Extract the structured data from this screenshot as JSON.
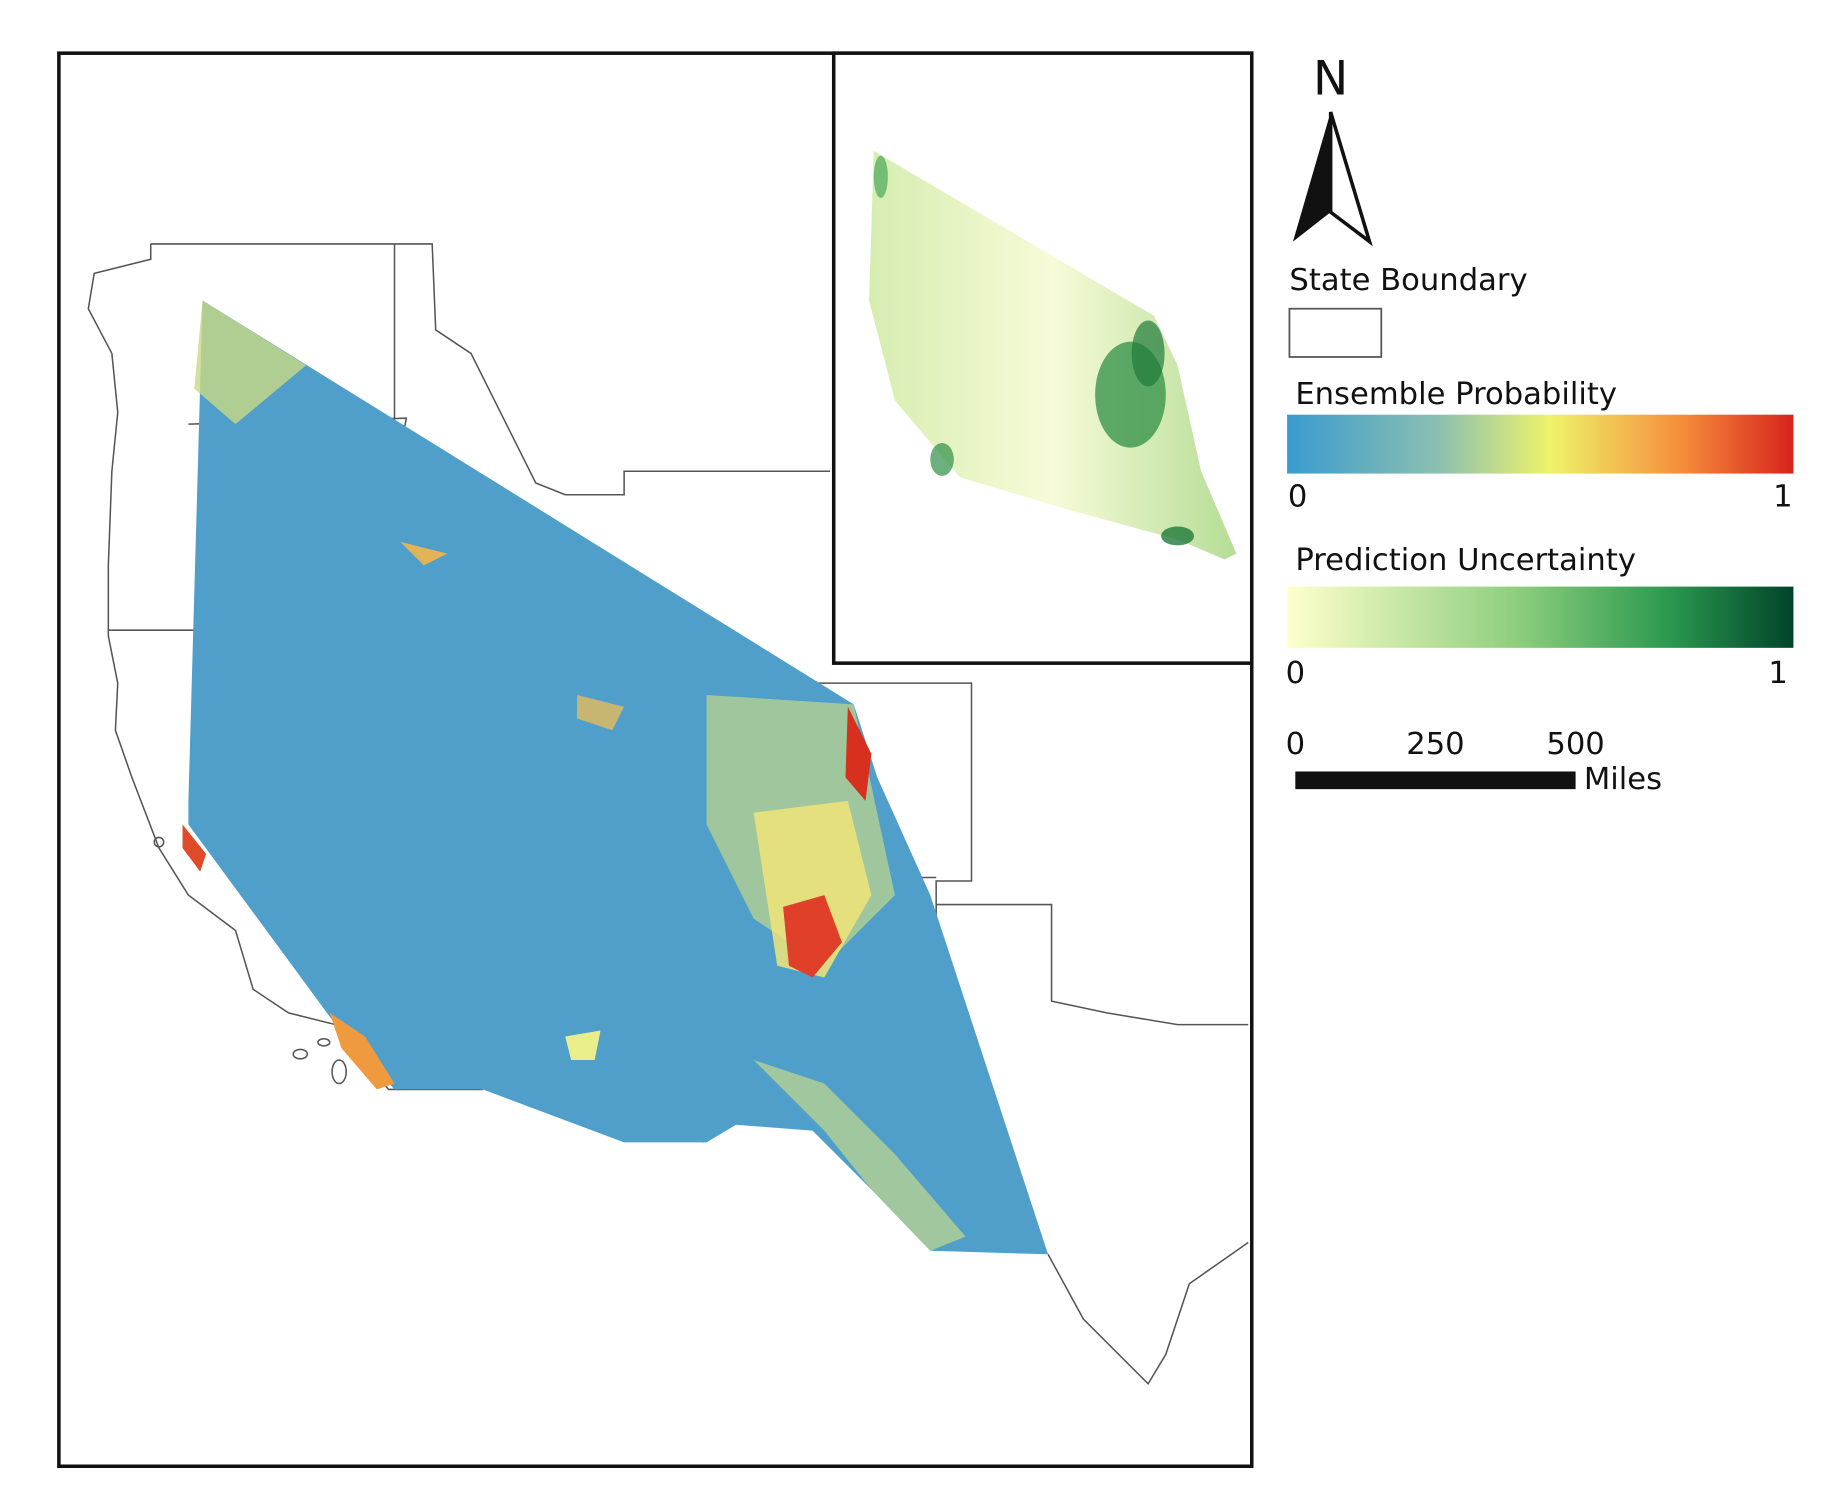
{
  "north_arrow": {
    "label": "N"
  },
  "legend": {
    "state_boundary": {
      "title": "State Boundary"
    },
    "ensemble_probability": {
      "title": "Ensemble Probability",
      "min": 0,
      "max": 1
    },
    "prediction_uncertainty": {
      "title": "Prediction Uncertainty",
      "min": 0,
      "max": 1
    }
  },
  "scale_bar": {
    "ticks": [
      0,
      250,
      500
    ],
    "unit": "Miles"
  }
}
